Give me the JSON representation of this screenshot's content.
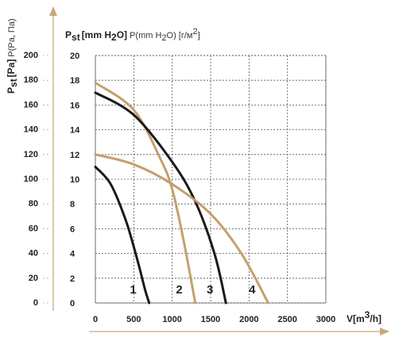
{
  "chart_data": {
    "type": "line",
    "title_left_bold": "P",
    "title_left_bold_sub": "st",
    "title_left_unit": "[Pa]",
    "title_left_norm": "P(Pa, Па)",
    "title_top_bold": "P",
    "title_top_bold_sub": "st",
    "title_top_unit_pre": "[mm H",
    "title_top_unit_sub": "2",
    "title_top_unit_post": "O]",
    "title_top_norm_pre": "P(mm H",
    "title_top_norm_sub": "2",
    "title_top_norm_post": "O) [г/м",
    "title_top_norm_sup": "2",
    "title_top_norm_end": "]",
    "xlabel_pre": "V[m",
    "xlabel_sup": "3",
    "xlabel_post": "/h]",
    "x_ticks": [
      "0",
      "500",
      "1000",
      "1500",
      "2000",
      "2500",
      "3000"
    ],
    "y_ticks_mm": [
      "0",
      "2",
      "4",
      "6",
      "8",
      "10",
      "12",
      "14",
      "16",
      "18",
      "20"
    ],
    "y_ticks_pa": [
      "0",
      "20",
      "40",
      "60",
      "80",
      "100",
      "120",
      "140",
      "160",
      "180",
      "200"
    ],
    "xlim": [
      0,
      3000
    ],
    "ylim_mm": [
      0,
      20
    ],
    "grid": true,
    "colors": {
      "dark": "#1a1a1a",
      "tan": "#c4a06c",
      "axis": "#c9a97a"
    },
    "series": [
      {
        "name": "1",
        "color": "dark",
        "x": [
          0,
          200,
          400,
          550,
          650,
          700
        ],
        "y": [
          11.0,
          9.6,
          6.6,
          3.4,
          1.0,
          0.0
        ]
      },
      {
        "name": "2",
        "color": "tan",
        "x": [
          0,
          500,
          850,
          1000,
          1150,
          1300
        ],
        "y": [
          17.8,
          15.6,
          11.6,
          9.2,
          5.0,
          0.0
        ]
      },
      {
        "name": "3",
        "color": "dark",
        "x": [
          0,
          500,
          1000,
          1300,
          1550,
          1700
        ],
        "y": [
          17.0,
          15.2,
          11.4,
          8.2,
          4.0,
          0.0
        ]
      },
      {
        "name": "4",
        "color": "tan",
        "x": [
          0,
          500,
          1000,
          1500,
          1900,
          2250
        ],
        "y": [
          12.0,
          11.2,
          9.6,
          7.2,
          4.0,
          0.0
        ]
      }
    ]
  }
}
